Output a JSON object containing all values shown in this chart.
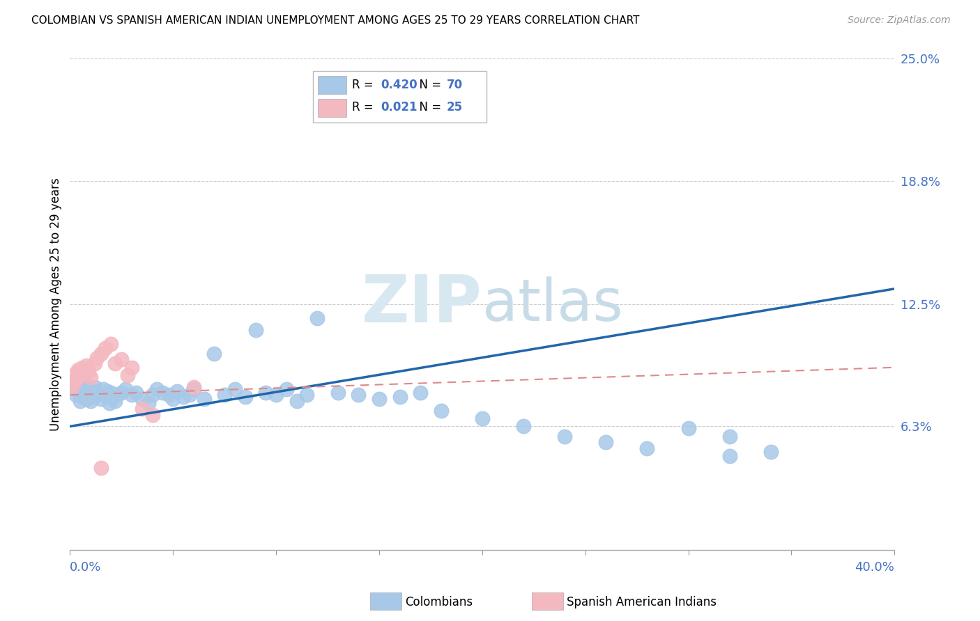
{
  "title": "COLOMBIAN VS SPANISH AMERICAN INDIAN UNEMPLOYMENT AMONG AGES 25 TO 29 YEARS CORRELATION CHART",
  "source": "Source: ZipAtlas.com",
  "ylabel": "Unemployment Among Ages 25 to 29 years",
  "xlim": [
    0.0,
    0.4
  ],
  "ylim": [
    0.0,
    0.25
  ],
  "y_tick_labels": [
    "25.0%",
    "18.8%",
    "12.5%",
    "6.3%"
  ],
  "y_tick_vals": [
    0.25,
    0.188,
    0.125,
    0.063
  ],
  "watermark": "ZIPatlas",
  "colombian_color": "#a8c8e8",
  "spanish_color": "#f4b8c0",
  "trendline_colombian_color": "#2266aa",
  "trendline_spanish_color": "#e08888",
  "background_color": "#ffffff",
  "grid_color": "#cccccc",
  "colombian_trend_x": [
    0.0,
    0.4
  ],
  "colombian_trend_y": [
    0.063,
    0.133
  ],
  "spanish_trend_x": [
    0.0,
    0.4
  ],
  "spanish_trend_y": [
    0.079,
    0.093
  ]
}
